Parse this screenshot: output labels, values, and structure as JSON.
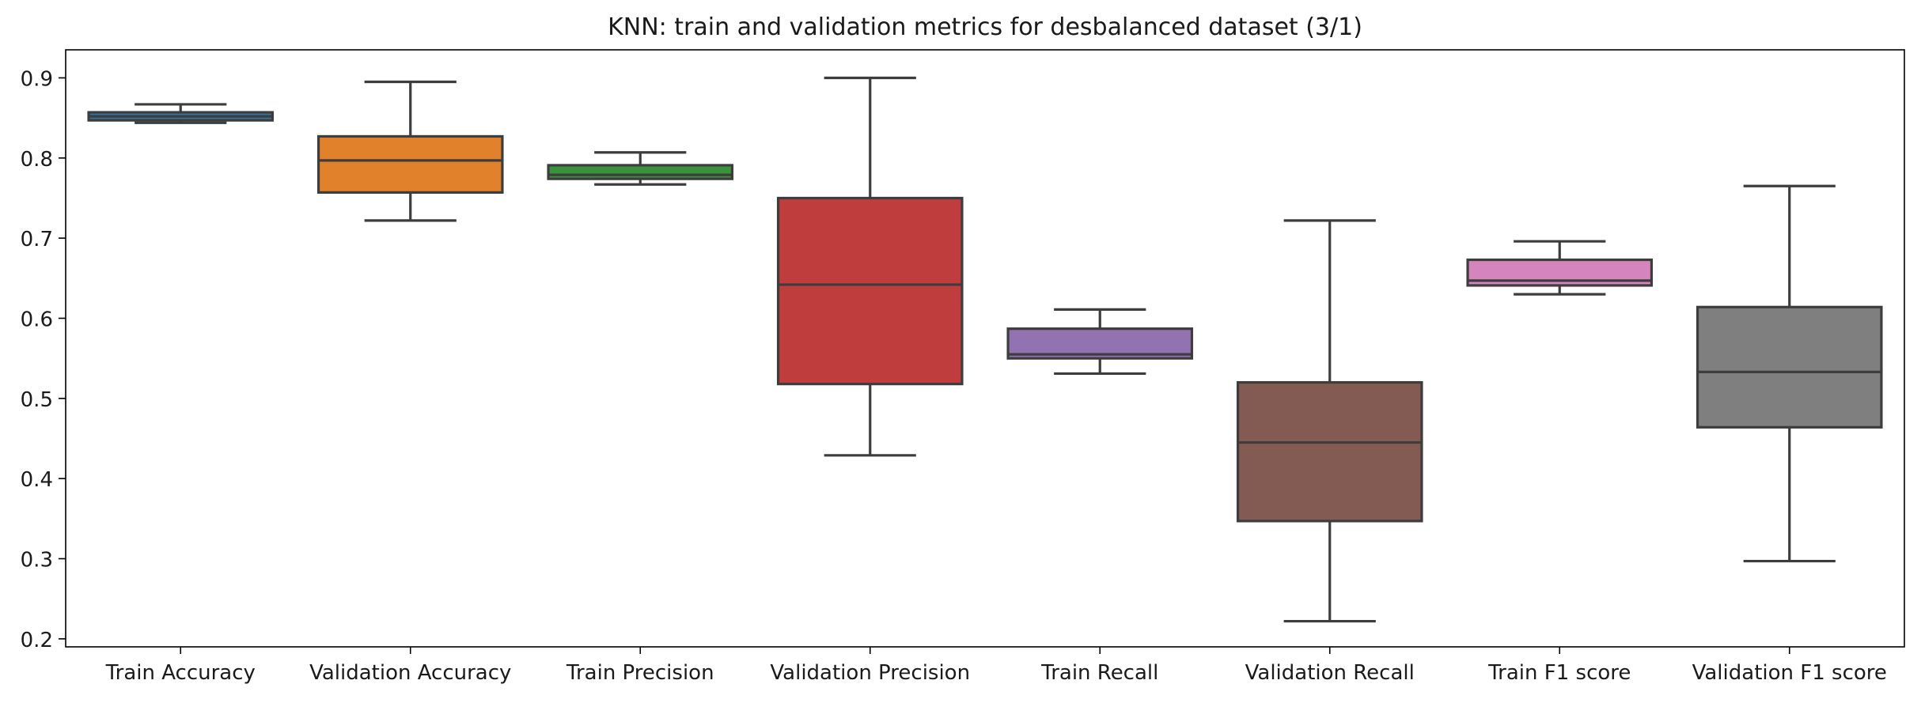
{
  "chart_data": {
    "type": "box",
    "title": "KNN: train and validation metrics for desbalanced dataset (3/1)",
    "xlabel": "",
    "ylabel": "",
    "ylim": [
      0.19,
      0.935
    ],
    "yticks": [
      0.2,
      0.3,
      0.4,
      0.5,
      0.6,
      0.7,
      0.8,
      0.9
    ],
    "ytick_labels": [
      "0.2",
      "0.3",
      "0.4",
      "0.5",
      "0.6",
      "0.7",
      "0.8",
      "0.9"
    ],
    "grid": false,
    "categories": [
      "Train Accuracy",
      "Validation Accuracy",
      "Train Precision",
      "Validation Precision",
      "Train Recall",
      "Validation Recall",
      "Train F1 score",
      "Validation F1 score"
    ],
    "boxes": [
      {
        "category": "Train Accuracy",
        "whisker_low": 0.844,
        "q1": 0.847,
        "median": 0.852,
        "q3": 0.857,
        "whisker_high": 0.867,
        "color": "#3274a1"
      },
      {
        "category": "Validation Accuracy",
        "whisker_low": 0.722,
        "q1": 0.757,
        "median": 0.797,
        "q3": 0.827,
        "whisker_high": 0.895,
        "color": "#e1812c"
      },
      {
        "category": "Train Precision",
        "whisker_low": 0.767,
        "q1": 0.774,
        "median": 0.779,
        "q3": 0.791,
        "whisker_high": 0.807,
        "color": "#3a923a"
      },
      {
        "category": "Validation Precision",
        "whisker_low": 0.429,
        "q1": 0.518,
        "median": 0.642,
        "q3": 0.75,
        "whisker_high": 0.9,
        "color": "#c03d3e"
      },
      {
        "category": "Train Recall",
        "whisker_low": 0.531,
        "q1": 0.55,
        "median": 0.555,
        "q3": 0.587,
        "whisker_high": 0.611,
        "color": "#9372b2"
      },
      {
        "category": "Validation Recall",
        "whisker_low": 0.222,
        "q1": 0.347,
        "median": 0.445,
        "q3": 0.52,
        "whisker_high": 0.722,
        "color": "#845b53"
      },
      {
        "category": "Train F1 score",
        "whisker_low": 0.63,
        "q1": 0.641,
        "median": 0.647,
        "q3": 0.673,
        "whisker_high": 0.696,
        "color": "#d684bd"
      },
      {
        "category": "Validation F1 score",
        "whisker_low": 0.297,
        "q1": 0.464,
        "median": 0.533,
        "q3": 0.614,
        "whisker_high": 0.765,
        "color": "#7f7f7f"
      }
    ],
    "line_color": "#3d3d3d"
  }
}
